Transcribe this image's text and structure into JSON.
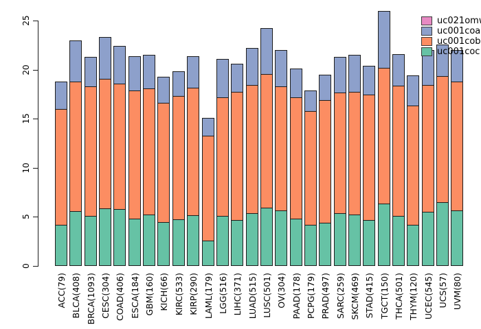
{
  "figure": {
    "background": "#ffffff"
  },
  "palette": {
    "uc021omw": "#E78AC3",
    "uc001coa": "#8DA0CB",
    "uc001cob": "#FC8D62",
    "uc001coc": "#66C2A5",
    "bar_border": "#1c1c1c",
    "axis": "#1a1a1a"
  },
  "legend": {
    "position": "top-right",
    "entries": [
      {
        "label": "uc021omw",
        "color": "#E78AC3"
      },
      {
        "label": "uc001coa",
        "color": "#8DA0CB"
      },
      {
        "label": "uc001cob",
        "color": "#FC8D62"
      },
      {
        "label": "uc001coc",
        "color": "#66C2A5"
      }
    ]
  },
  "y_axis": {
    "ticks": [
      "0",
      "5",
      "10",
      "15",
      "20",
      "25"
    ],
    "tick_values": [
      0,
      5,
      10,
      15,
      20,
      25
    ]
  },
  "chart_data": {
    "type": "bar",
    "stacked": true,
    "title": "",
    "xlabel": "",
    "ylabel": "",
    "ylim": [
      0,
      25
    ],
    "grid": false,
    "legend_position": "top-right",
    "categories": [
      "ACC(79)",
      "BLCA(408)",
      "BRCA(1093)",
      "CESC(304)",
      "COAD(406)",
      "ESCA(184)",
      "GBM(160)",
      "KICH(66)",
      "KIRC(533)",
      "KIRP(290)",
      "LAML(179)",
      "LGG(516)",
      "LIHC(371)",
      "LUAD(515)",
      "LUSC(501)",
      "OV(304)",
      "PAAD(178)",
      "PCPG(179)",
      "PRAD(497)",
      "SARC(259)",
      "SKCM(469)",
      "STAD(415)",
      "TGCT(150)",
      "THCA(501)",
      "THYM(120)",
      "UCEC(545)",
      "UCS(57)",
      "UVM(80)"
    ],
    "series": [
      {
        "name": "uc001coc",
        "color": "#66C2A5",
        "values": [
          4.15,
          5.5,
          5.0,
          5.8,
          5.7,
          4.75,
          5.2,
          4.4,
          4.7,
          5.1,
          2.5,
          5.0,
          4.6,
          5.3,
          5.9,
          5.6,
          4.75,
          4.1,
          4.3,
          5.3,
          5.15,
          4.6,
          6.3,
          5.0,
          4.1,
          5.45,
          6.4,
          5.6
        ]
      },
      {
        "name": "uc001cob",
        "color": "#FC8D62",
        "values": [
          11.75,
          13.2,
          13.2,
          13.2,
          12.8,
          13.05,
          12.8,
          12.15,
          12.55,
          13.0,
          10.7,
          12.1,
          13.1,
          13.1,
          13.6,
          12.6,
          12.35,
          11.6,
          12.5,
          12.3,
          12.55,
          12.8,
          13.8,
          13.3,
          12.2,
          12.95,
          12.85,
          13.1
        ]
      },
      {
        "name": "uc001coa",
        "color": "#8DA0CB",
        "values": [
          2.9,
          4.3,
          3.1,
          4.3,
          3.9,
          3.6,
          3.5,
          2.75,
          2.55,
          3.3,
          1.9,
          4.0,
          2.9,
          3.8,
          4.75,
          3.8,
          3.0,
          2.2,
          2.7,
          3.7,
          3.8,
          3.0,
          5.9,
          3.3,
          3.1,
          3.6,
          3.3,
          3.3
        ]
      },
      {
        "name": "uc021omw",
        "color": "#E78AC3",
        "values": [
          0,
          0,
          0,
          0,
          0,
          0,
          0,
          0,
          0,
          0,
          0,
          0,
          0,
          0,
          0,
          0,
          0,
          0,
          0,
          0,
          0,
          0,
          0,
          0,
          0,
          0,
          0,
          0
        ]
      }
    ]
  }
}
